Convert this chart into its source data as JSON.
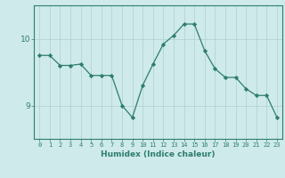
{
  "x": [
    0,
    1,
    2,
    3,
    4,
    5,
    6,
    7,
    8,
    9,
    10,
    11,
    12,
    13,
    14,
    15,
    16,
    17,
    18,
    19,
    20,
    21,
    22,
    23
  ],
  "y": [
    9.75,
    9.75,
    9.6,
    9.6,
    9.62,
    9.45,
    9.45,
    9.45,
    9.0,
    8.82,
    9.3,
    9.62,
    9.92,
    10.05,
    10.22,
    10.22,
    9.82,
    9.55,
    9.42,
    9.42,
    9.25,
    9.15,
    9.15,
    8.82
  ],
  "line_color": "#2e7d6e",
  "marker": "D",
  "marker_size": 2.2,
  "bg_color": "#ceeaea",
  "grid_color": "#b0d0cc",
  "axis_color": "#2e7d6e",
  "tick_color": "#2e7d6e",
  "xlabel": "Humidex (Indice chaleur)",
  "yticks": [
    9,
    10
  ],
  "ylim": [
    8.5,
    10.5
  ],
  "xlim": [
    -0.5,
    23.5
  ],
  "xlabel_color": "#2e7d6e",
  "xtick_fontsize": 5.0,
  "ytick_fontsize": 6.5,
  "xlabel_fontsize": 6.5
}
